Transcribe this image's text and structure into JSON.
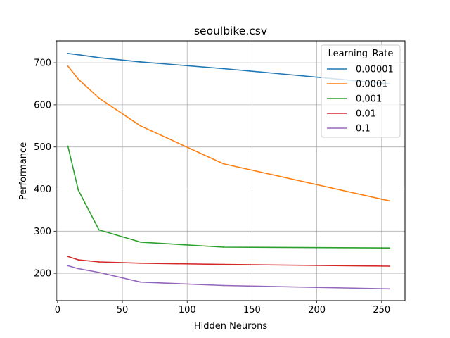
{
  "chart_data": {
    "type": "line",
    "title": "seoulbike.csv",
    "xlabel": "Hidden Neurons",
    "ylabel": "Performance",
    "xlim": [
      -1,
      268
    ],
    "ylim": [
      135,
      752
    ],
    "xticks": [
      0,
      50,
      100,
      150,
      200,
      250
    ],
    "yticks": [
      200,
      300,
      400,
      500,
      600,
      700
    ],
    "grid": true,
    "legend": {
      "title": "Learning_Rate",
      "placement": "top-right"
    },
    "x": [
      8,
      16,
      32,
      64,
      128,
      256
    ],
    "series": [
      {
        "name": "0.00001",
        "color": "#1f77b4",
        "values": [
          722,
          719,
          712,
          702,
          686,
          650
        ]
      },
      {
        "name": "0.0001",
        "color": "#ff7f0e",
        "values": [
          692,
          661,
          616,
          550,
          460,
          372
        ]
      },
      {
        "name": "0.001",
        "color": "#2ca02c",
        "values": [
          502,
          398,
          303,
          274,
          262,
          260
        ]
      },
      {
        "name": "0.01",
        "color": "#d62728",
        "values": [
          240,
          232,
          227,
          224,
          221,
          217
        ]
      },
      {
        "name": "0.1",
        "color": "#9467bd",
        "values": [
          218,
          211,
          202,
          179,
          171,
          163
        ]
      }
    ]
  }
}
